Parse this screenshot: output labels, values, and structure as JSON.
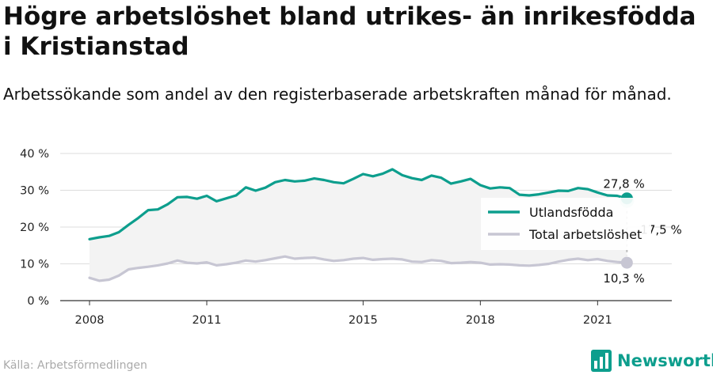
{
  "title": "Högre arbetslöshet bland utrikes- än inrikesfödda i Kristianstad",
  "subtitle": "Arbetssökande som andel av den registerbaserade arbetskraften månad för månad.",
  "source": "Källa: Arbetsförmedlingen",
  "brand": {
    "name": "Newsworthy",
    "color": "#0d9e8d"
  },
  "colors": {
    "foreign": "#0d9e8d",
    "total": "#c7c6d3",
    "band": "#f3f3f3",
    "grid": "#dddddd"
  },
  "chart_data": {
    "type": "line",
    "ylim": [
      0,
      40
    ],
    "yticks": [
      0,
      10,
      20,
      30,
      40
    ],
    "ytick_labels": [
      "0 %",
      "10 %",
      "20 %",
      "30 %",
      "40 %"
    ],
    "xlim": [
      2008.0,
      2022.25
    ],
    "xticks": [
      2008,
      2011,
      2015,
      2018,
      2021
    ],
    "xtick_labels": [
      "2008",
      "2011",
      "2015",
      "2018",
      "2021"
    ],
    "legend": {
      "position": "right"
    },
    "series": [
      {
        "name": "Utlandsfödda",
        "color": "#0d9e8d",
        "points": [
          [
            2008.0,
            16.7
          ],
          [
            2008.25,
            17.2
          ],
          [
            2008.5,
            17.6
          ],
          [
            2008.75,
            18.6
          ],
          [
            2009.0,
            20.6
          ],
          [
            2009.25,
            22.5
          ],
          [
            2009.5,
            24.6
          ],
          [
            2009.75,
            24.8
          ],
          [
            2010.0,
            26.2
          ],
          [
            2010.25,
            28.1
          ],
          [
            2010.5,
            28.2
          ],
          [
            2010.75,
            27.7
          ],
          [
            2011.0,
            28.5
          ],
          [
            2011.25,
            27.0
          ],
          [
            2011.5,
            27.8
          ],
          [
            2011.75,
            28.6
          ],
          [
            2012.0,
            30.8
          ],
          [
            2012.25,
            29.9
          ],
          [
            2012.5,
            30.7
          ],
          [
            2012.75,
            32.2
          ],
          [
            2013.0,
            32.8
          ],
          [
            2013.25,
            32.4
          ],
          [
            2013.5,
            32.6
          ],
          [
            2013.75,
            33.2
          ],
          [
            2014.0,
            32.8
          ],
          [
            2014.25,
            32.2
          ],
          [
            2014.5,
            31.9
          ],
          [
            2014.75,
            33.1
          ],
          [
            2015.0,
            34.4
          ],
          [
            2015.25,
            33.8
          ],
          [
            2015.5,
            34.5
          ],
          [
            2015.75,
            35.7
          ],
          [
            2016.0,
            34.1
          ],
          [
            2016.25,
            33.3
          ],
          [
            2016.5,
            32.8
          ],
          [
            2016.75,
            34.0
          ],
          [
            2017.0,
            33.4
          ],
          [
            2017.25,
            31.8
          ],
          [
            2017.5,
            32.4
          ],
          [
            2017.75,
            33.1
          ],
          [
            2018.0,
            31.4
          ],
          [
            2018.25,
            30.5
          ],
          [
            2018.5,
            30.8
          ],
          [
            2018.75,
            30.6
          ],
          [
            2019.0,
            28.8
          ],
          [
            2019.25,
            28.6
          ],
          [
            2019.5,
            28.9
          ],
          [
            2019.75,
            29.4
          ],
          [
            2020.0,
            29.9
          ],
          [
            2020.25,
            29.8
          ],
          [
            2020.5,
            30.6
          ],
          [
            2020.75,
            30.3
          ],
          [
            2021.0,
            29.4
          ],
          [
            2021.25,
            28.6
          ],
          [
            2021.5,
            28.5
          ],
          [
            2021.75,
            27.8
          ]
        ]
      },
      {
        "name": "Total arbetslöshet",
        "color": "#c7c6d3",
        "points": [
          [
            2008.0,
            6.2
          ],
          [
            2008.25,
            5.4
          ],
          [
            2008.5,
            5.7
          ],
          [
            2008.75,
            6.8
          ],
          [
            2009.0,
            8.5
          ],
          [
            2009.25,
            8.9
          ],
          [
            2009.5,
            9.2
          ],
          [
            2009.75,
            9.6
          ],
          [
            2010.0,
            10.1
          ],
          [
            2010.25,
            10.9
          ],
          [
            2010.5,
            10.3
          ],
          [
            2010.75,
            10.1
          ],
          [
            2011.0,
            10.4
          ],
          [
            2011.25,
            9.6
          ],
          [
            2011.5,
            9.9
          ],
          [
            2011.75,
            10.3
          ],
          [
            2012.0,
            10.9
          ],
          [
            2012.25,
            10.6
          ],
          [
            2012.5,
            11.0
          ],
          [
            2012.75,
            11.5
          ],
          [
            2013.0,
            12.0
          ],
          [
            2013.25,
            11.4
          ],
          [
            2013.5,
            11.6
          ],
          [
            2013.75,
            11.7
          ],
          [
            2014.0,
            11.2
          ],
          [
            2014.25,
            10.8
          ],
          [
            2014.5,
            11.0
          ],
          [
            2014.75,
            11.4
          ],
          [
            2015.0,
            11.6
          ],
          [
            2015.25,
            11.1
          ],
          [
            2015.5,
            11.3
          ],
          [
            2015.75,
            11.4
          ],
          [
            2016.0,
            11.2
          ],
          [
            2016.25,
            10.6
          ],
          [
            2016.5,
            10.5
          ],
          [
            2016.75,
            11.0
          ],
          [
            2017.0,
            10.8
          ],
          [
            2017.25,
            10.2
          ],
          [
            2017.5,
            10.3
          ],
          [
            2017.75,
            10.5
          ],
          [
            2018.0,
            10.3
          ],
          [
            2018.25,
            9.8
          ],
          [
            2018.5,
            9.9
          ],
          [
            2018.75,
            9.8
          ],
          [
            2019.0,
            9.6
          ],
          [
            2019.25,
            9.5
          ],
          [
            2019.5,
            9.7
          ],
          [
            2019.75,
            10.0
          ],
          [
            2020.0,
            10.6
          ],
          [
            2020.25,
            11.1
          ],
          [
            2020.5,
            11.4
          ],
          [
            2020.75,
            11.0
          ],
          [
            2021.0,
            11.3
          ],
          [
            2021.25,
            10.8
          ],
          [
            2021.5,
            10.5
          ],
          [
            2021.75,
            10.3
          ]
        ]
      }
    ],
    "annotations": {
      "last_foreign": "27,8 %",
      "last_total": "10,3 %",
      "gap": "17,5 %"
    }
  }
}
